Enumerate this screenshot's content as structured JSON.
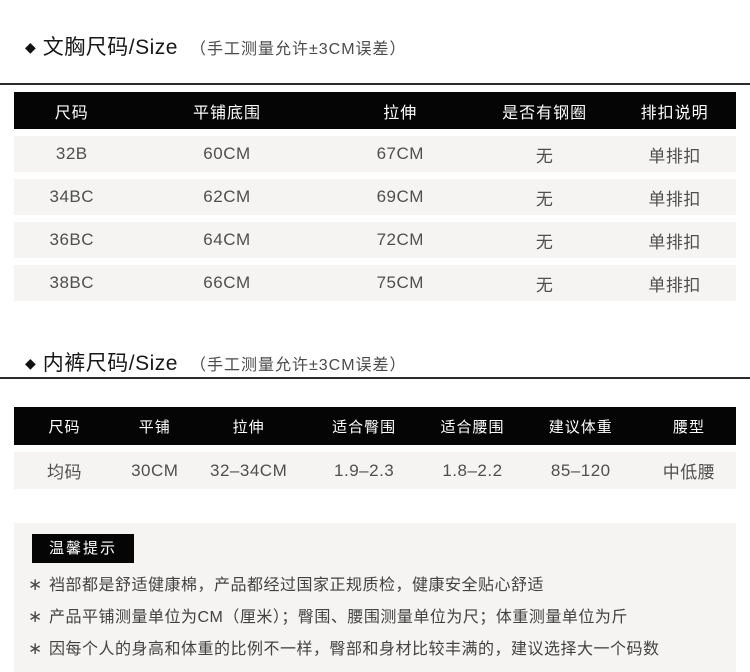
{
  "colors": {
    "header_bar": "#050505",
    "row_background": "#f5f4f2",
    "body_text": "#4f4f4f",
    "title_text": "#171717",
    "badge_background": "#050505",
    "badge_text": "#ffffff"
  },
  "icons": {
    "diamond": "◆",
    "bullet_star": "∗"
  },
  "sections": [
    {
      "title": "文胸尺码/Size",
      "note": "（手工测量允许±3CM误差）",
      "table": {
        "headers": [
          "尺码",
          "平铺底围",
          "拉伸",
          "是否有钢圈",
          "排扣说明"
        ],
        "rows": [
          [
            "32B",
            "60CM",
            "67CM",
            "无",
            "单排扣"
          ],
          [
            "34BC",
            "62CM",
            "69CM",
            "无",
            "单排扣"
          ],
          [
            "36BC",
            "64CM",
            "72CM",
            "无",
            "单排扣"
          ],
          [
            "38BC",
            "66CM",
            "75CM",
            "无",
            "单排扣"
          ]
        ]
      }
    },
    {
      "title": "内裤尺码/Size",
      "note": "（手工测量允许±3CM误差）",
      "table": {
        "headers": [
          "尺码",
          "平铺",
          "拉伸",
          "适合臀围",
          "适合腰围",
          "建议体重",
          "腰型"
        ],
        "rows": [
          [
            "均码",
            "30CM",
            "32–34CM",
            "1.9–2.3",
            "1.8–2.2",
            "85–120",
            "中低腰"
          ]
        ]
      }
    }
  ],
  "tips": {
    "badge": "温馨提示",
    "items": [
      "裆部都是舒适健康棉，产品都经过国家正规质检，健康安全贴心舒适",
      "产品平铺测量单位为CM（厘米）；臀围、腰围测量单位为尺；体重测量单位为斤",
      "因每个人的身高和体重的比例不一样，臀部和身材比较丰满的，建议选择大一个码数"
    ]
  }
}
